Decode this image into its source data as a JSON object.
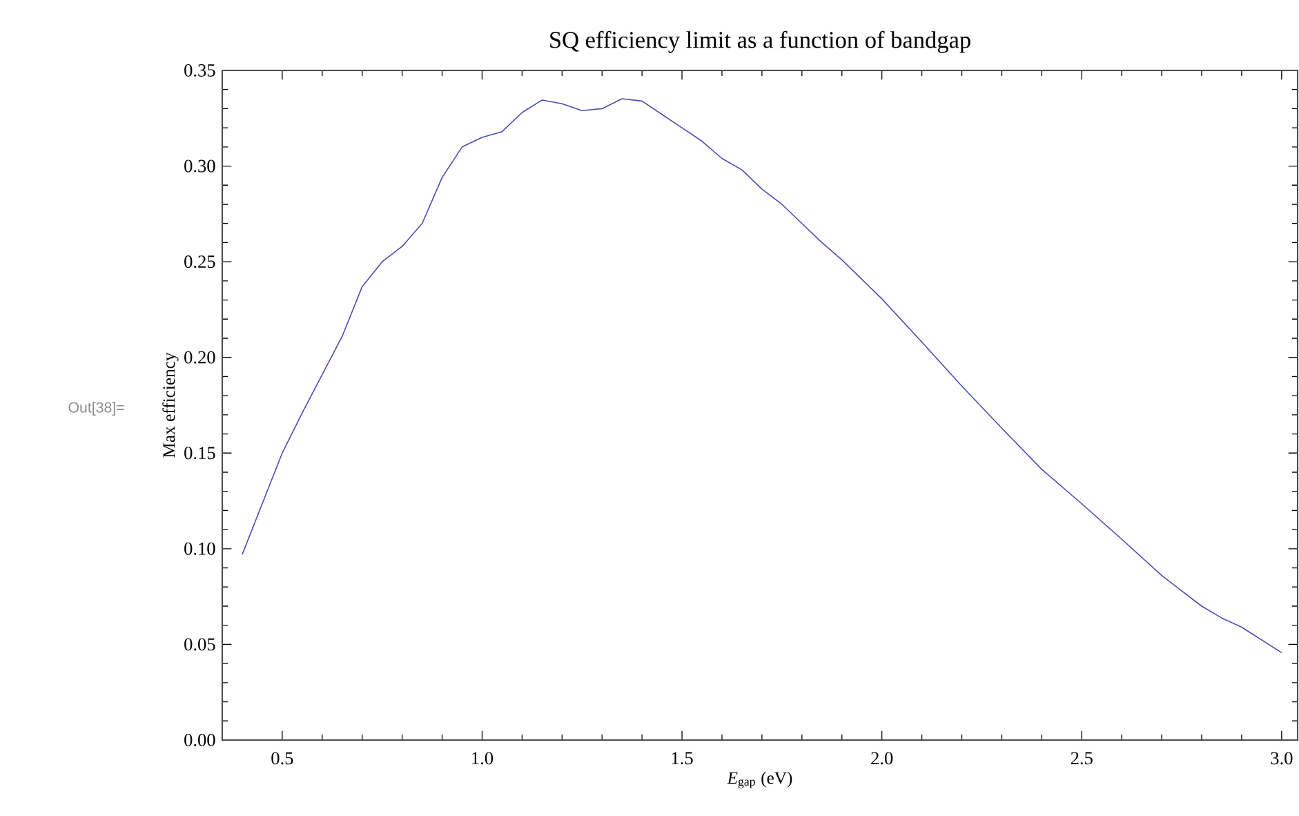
{
  "chart_data": {
    "type": "line",
    "title": "SQ efficiency limit as a function of bandgap",
    "xlabel": "*E*$_{gap}$ (eV)",
    "ylabel": "Max efficiency",
    "annotations": [
      "Out[38]="
    ],
    "x": [
      0.4,
      0.5,
      0.55,
      0.6,
      0.65,
      0.7,
      0.75,
      0.8,
      0.85,
      0.9,
      0.95,
      1.0,
      1.05,
      1.1,
      1.15,
      1.2,
      1.25,
      1.3,
      1.35,
      1.4,
      1.45,
      1.5,
      1.55,
      1.6,
      1.65,
      1.7,
      1.75,
      1.8,
      1.85,
      1.9,
      2.0,
      2.1,
      2.2,
      2.3,
      2.4,
      2.5,
      2.6,
      2.7,
      2.75,
      2.8,
      2.85,
      2.9,
      3.0
    ],
    "values": [
      0.097,
      0.15,
      0.171,
      0.191,
      0.211,
      0.237,
      0.25,
      0.258,
      0.27,
      0.294,
      0.31,
      0.315,
      0.318,
      0.328,
      0.3345,
      0.3326,
      0.329,
      0.33,
      0.3352,
      0.334,
      0.327,
      0.32,
      0.313,
      0.304,
      0.298,
      0.288,
      0.28,
      0.27,
      0.26,
      0.251,
      0.2306,
      0.208,
      0.185,
      0.163,
      0.1415,
      0.1235,
      0.105,
      0.086,
      0.078,
      0.07,
      0.0638,
      0.059,
      0.0457
    ],
    "color": "#4b4bb5",
    "xlim": [
      0.35,
      3.04
    ],
    "ylim": [
      0,
      0.35
    ],
    "xticks": [
      0.5,
      {
        "value": 1,
        "label": "1.0"
      },
      1.5,
      {
        "value": 2,
        "label": "2.0"
      },
      2.5,
      {
        "value": 3,
        "label": "3.0"
      }
    ],
    "yticks": [
      {
        "value": 0,
        "label": "0.00"
      },
      {
        "value": 0.05,
        "label": "0.05"
      },
      {
        "value": 0.1,
        "label": "0.10"
      },
      {
        "value": 0.15,
        "label": "0.15"
      },
      {
        "value": 0.2,
        "label": "0.20"
      },
      {
        "value": 0.25,
        "label": "0.25"
      },
      {
        "value": 0.3,
        "label": "0.30"
      },
      {
        "value": 0.35,
        "label": "0.35"
      }
    ]
  }
}
